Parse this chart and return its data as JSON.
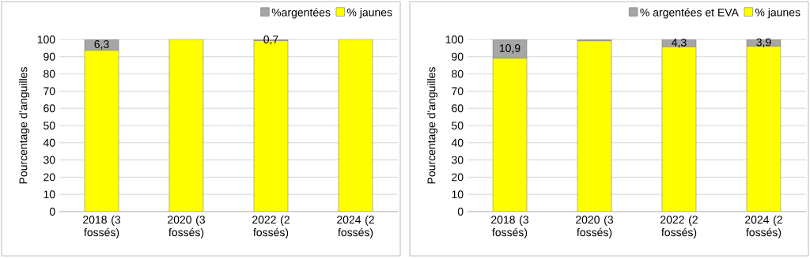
{
  "chart_data": [
    {
      "type": "bar",
      "stacked": true,
      "categories": [
        "2018 (3 fossés)",
        "2020 (3 fossés)",
        "2022 (2 fossés)",
        "2024 (2 fossés)"
      ],
      "ylabel": "Pourcentage d'anguilles",
      "ylim": [
        0,
        100
      ],
      "yticks": [
        0,
        10,
        20,
        30,
        40,
        50,
        60,
        70,
        80,
        90,
        100
      ],
      "grid": "y",
      "legend": "top right",
      "series": [
        {
          "name": "% jaunes",
          "color": "#ffff00",
          "values": [
            93.7,
            100,
            99.3,
            100
          ]
        },
        {
          "name": "%argentées",
          "color": "#a6a6a6",
          "values": [
            6.3,
            0,
            0.7,
            0
          ],
          "value_labels": [
            "6,3",
            null,
            "0,7",
            null
          ]
        }
      ]
    },
    {
      "type": "bar",
      "stacked": true,
      "categories": [
        "2018 (3 fossés)",
        "2020 (3 fossés)",
        "2022 (2 fossés)",
        "2024 (2 fossés)"
      ],
      "ylabel": "Pourcentage d'anguilles",
      "ylim": [
        0,
        100
      ],
      "yticks": [
        0,
        10,
        20,
        30,
        40,
        50,
        60,
        70,
        80,
        90,
        100
      ],
      "grid": "y",
      "legend": "top right",
      "series": [
        {
          "name": "% jaunes",
          "color": "#ffff00",
          "values": [
            89.1,
            99.2,
            95.7,
            96.1
          ]
        },
        {
          "name": "% argentées et EVA",
          "color": "#a6a6a6",
          "values": [
            10.9,
            0.8,
            4.3,
            3.9
          ],
          "value_labels": [
            "10,9",
            null,
            "4,3",
            "3,9"
          ]
        }
      ]
    }
  ]
}
